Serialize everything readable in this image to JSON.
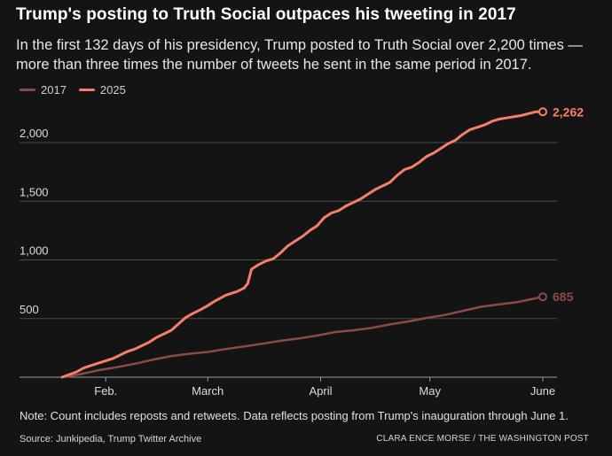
{
  "header": {
    "title": "Trump's posting to Truth Social outpaces his tweeting in 2017",
    "subtitle": "In the first 132 days of his presidency, Trump posted to Truth Social over 2,200 times — more than three times the number of tweets he sent in the same period in 2017."
  },
  "footer": {
    "note": "Note: Count includes reposts and retweets. Data reflects posting from Trump's inauguration through June 1.",
    "source": "Source: Junkipedia, Trump Twitter Archive",
    "credit": "CLARA ENCE MORSE / THE WASHINGTON POST"
  },
  "chart_data": {
    "type": "line",
    "title": "Trump's posting to Truth Social outpaces his tweeting in 2017",
    "xlabel": "",
    "ylabel": "",
    "x_unit": "day of presidency",
    "xlim": [
      0,
      132
    ],
    "ylim": [
      0,
      2350
    ],
    "yticks": [
      500,
      1000,
      1500,
      2000
    ],
    "ytick_labels": [
      "500",
      "1,000",
      "1,500",
      "2,000"
    ],
    "xticks": [
      {
        "label": "Feb.",
        "day": 12
      },
      {
        "label": "March",
        "day": 40
      },
      {
        "label": "April",
        "day": 71
      },
      {
        "label": "May",
        "day": 101
      },
      {
        "label": "June",
        "day": 132
      }
    ],
    "grid": "horizontal",
    "legend_position": "top-left",
    "series": [
      {
        "name": "2017",
        "color": "#8a4b48",
        "end_label": "685",
        "points": [
          [
            0,
            0
          ],
          [
            5,
            25
          ],
          [
            10,
            60
          ],
          [
            15,
            85
          ],
          [
            20,
            115
          ],
          [
            25,
            150
          ],
          [
            30,
            180
          ],
          [
            35,
            200
          ],
          [
            40,
            215
          ],
          [
            45,
            240
          ],
          [
            50,
            262
          ],
          [
            55,
            285
          ],
          [
            60,
            310
          ],
          [
            65,
            330
          ],
          [
            70,
            355
          ],
          [
            75,
            385
          ],
          [
            80,
            400
          ],
          [
            85,
            420
          ],
          [
            90,
            450
          ],
          [
            95,
            475
          ],
          [
            100,
            505
          ],
          [
            105,
            530
          ],
          [
            110,
            565
          ],
          [
            115,
            600
          ],
          [
            120,
            620
          ],
          [
            125,
            640
          ],
          [
            128,
            660
          ],
          [
            132,
            685
          ]
        ]
      },
      {
        "name": "2025",
        "color": "#f57f6a",
        "end_label": "2,262",
        "points": [
          [
            0,
            0
          ],
          [
            4,
            45
          ],
          [
            6,
            80
          ],
          [
            10,
            120
          ],
          [
            14,
            160
          ],
          [
            18,
            220
          ],
          [
            20,
            240
          ],
          [
            24,
            300
          ],
          [
            26,
            340
          ],
          [
            28,
            370
          ],
          [
            30,
            400
          ],
          [
            34,
            510
          ],
          [
            36,
            545
          ],
          [
            38,
            575
          ],
          [
            40,
            610
          ],
          [
            42,
            650
          ],
          [
            45,
            700
          ],
          [
            48,
            730
          ],
          [
            50,
            760
          ],
          [
            51,
            800
          ],
          [
            52,
            920
          ],
          [
            54,
            960
          ],
          [
            56,
            990
          ],
          [
            58,
            1010
          ],
          [
            60,
            1060
          ],
          [
            62,
            1120
          ],
          [
            64,
            1160
          ],
          [
            66,
            1200
          ],
          [
            68,
            1250
          ],
          [
            70,
            1290
          ],
          [
            72,
            1360
          ],
          [
            74,
            1400
          ],
          [
            76,
            1420
          ],
          [
            78,
            1460
          ],
          [
            80,
            1490
          ],
          [
            82,
            1520
          ],
          [
            84,
            1560
          ],
          [
            86,
            1600
          ],
          [
            88,
            1630
          ],
          [
            90,
            1660
          ],
          [
            92,
            1720
          ],
          [
            94,
            1770
          ],
          [
            96,
            1790
          ],
          [
            98,
            1830
          ],
          [
            100,
            1880
          ],
          [
            102,
            1910
          ],
          [
            104,
            1950
          ],
          [
            106,
            1990
          ],
          [
            108,
            2020
          ],
          [
            110,
            2070
          ],
          [
            112,
            2110
          ],
          [
            114,
            2130
          ],
          [
            116,
            2150
          ],
          [
            118,
            2180
          ],
          [
            120,
            2200
          ],
          [
            122,
            2210
          ],
          [
            126,
            2230
          ],
          [
            130,
            2262
          ],
          [
            132,
            2262
          ]
        ]
      }
    ]
  }
}
